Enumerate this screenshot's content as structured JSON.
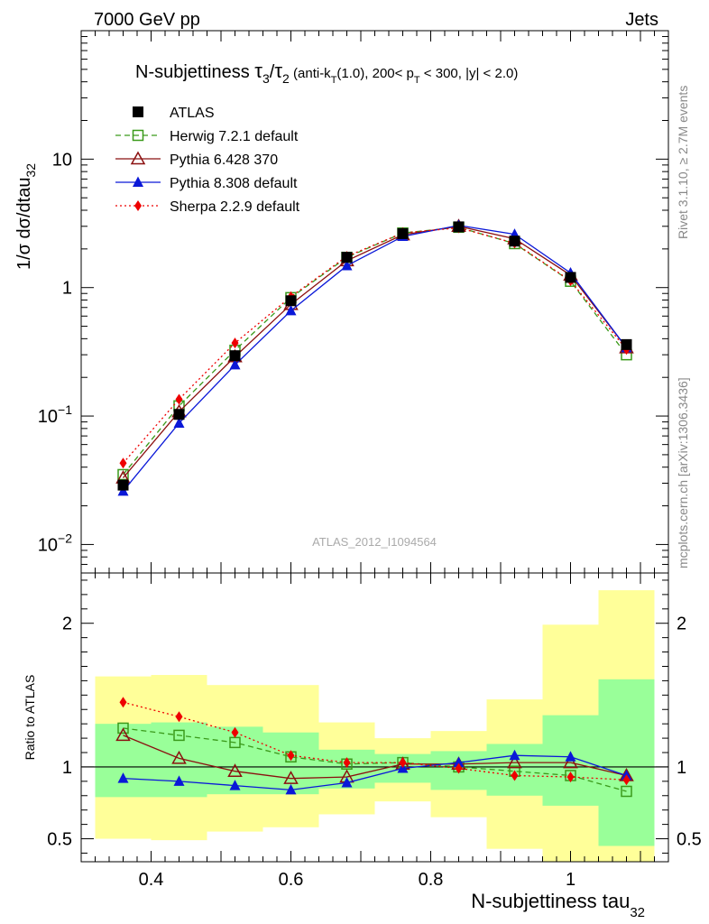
{
  "header": {
    "left": "7000 GeV pp",
    "right": "Jets"
  },
  "title_main": "N-subjettiness ",
  "title_tau3": "τ",
  "title_sub3": "3",
  "title_slash": "/",
  "title_tau2": "τ",
  "title_sub2": "2",
  "title_cuts_a": " (anti-k",
  "title_cuts_T1": "T",
  "title_cuts_b": "(1.0), 200< p",
  "title_cuts_T2": "T",
  "title_cuts_c": " < 300, |y| < 2.0)",
  "analysis_id": "ATLAS_2012_I1094564",
  "side_right_1": "Rivet 3.1.10, ≥ 2.7M events",
  "side_right_2": "mcplots.cern.ch [arXiv:1306.3436]",
  "ylabel_main": "1/σ dσ/dtau",
  "ylabel_main_sub": "32",
  "ylabel_ratio": "Ratio to ATLAS",
  "xlabel": "N-subjettiness tau",
  "xlabel_sub": "32",
  "colors": {
    "atlas": "#000000",
    "herwig": "#3a9a1a",
    "pythia6": "#8b1010",
    "pythia8": "#0a18d8",
    "sherpa": "#ee0000",
    "band_outer": "#ffff99",
    "band_inner": "#99ff99"
  },
  "chart_data": {
    "type": "line",
    "main": {
      "yscale": "log",
      "ylim": [
        0.006,
        100
      ],
      "xlim": [
        0.3,
        1.14
      ],
      "x_ticks": [
        "0.4",
        "0.6",
        "0.8",
        "1"
      ],
      "y_tick_labels": [
        {
          "value": 10,
          "base": "10",
          "exp": ""
        },
        {
          "value": 1,
          "base": "1",
          "exp": ""
        },
        {
          "value": 0.1,
          "base": "10",
          "exp": "−1"
        },
        {
          "value": 0.01,
          "base": "10",
          "exp": "−2"
        }
      ],
      "legend": "top-left"
    },
    "ratio": {
      "ylim": [
        0.34,
        2.35
      ],
      "y_ticks": [
        "0.5",
        "1",
        "2"
      ],
      "y_tick_values": [
        0.5,
        1,
        2
      ]
    },
    "x": [
      0.36,
      0.44,
      0.52,
      0.6,
      0.68,
      0.76,
      0.84,
      0.92,
      1.0,
      1.08
    ],
    "bin_edges": [
      0.32,
      0.4,
      0.48,
      0.56,
      0.64,
      0.72,
      0.8,
      0.88,
      0.96,
      1.04,
      1.12
    ],
    "series": [
      {
        "name": "ATLAS",
        "key": "atlas",
        "marker": "square-filled",
        "line": "none",
        "values": [
          0.029,
          0.103,
          0.295,
          0.79,
          1.72,
          2.63,
          2.97,
          2.3,
          1.2,
          0.36
        ]
      },
      {
        "name": "Herwig 7.2.1 default",
        "key": "herwig",
        "marker": "square-open",
        "line": "dashed",
        "values": [
          0.035,
          0.12,
          0.325,
          0.835,
          1.72,
          2.66,
          2.95,
          2.2,
          1.12,
          0.3
        ],
        "ratio": [
          1.27,
          1.22,
          1.17,
          1.07,
          1.02,
          1.03,
          1.0,
          0.97,
          0.94,
          0.83
        ]
      },
      {
        "name": "Pythia 6.428 370",
        "key": "pythia6",
        "marker": "triangle-open",
        "line": "solid",
        "values": [
          0.033,
          0.108,
          0.29,
          0.74,
          1.62,
          2.58,
          3.0,
          2.4,
          1.25,
          0.34
        ],
        "ratio": [
          1.22,
          1.06,
          0.97,
          0.92,
          0.93,
          1.02,
          1.02,
          1.03,
          1.03,
          0.94
        ]
      },
      {
        "name": "Pythia 8.308 default",
        "key": "pythia8",
        "marker": "triangle-filled",
        "line": "solid",
        "values": [
          0.026,
          0.088,
          0.25,
          0.66,
          1.48,
          2.5,
          3.05,
          2.6,
          1.3,
          0.34
        ],
        "ratio": [
          0.92,
          0.9,
          0.87,
          0.84,
          0.89,
          0.99,
          1.03,
          1.08,
          1.07,
          0.94
        ]
      },
      {
        "name": "Sherpa 2.2.9 default",
        "key": "sherpa",
        "marker": "diamond-filled",
        "line": "dotted",
        "values": [
          0.043,
          0.135,
          0.37,
          0.85,
          1.75,
          2.66,
          2.92,
          2.22,
          1.13,
          0.33
        ],
        "ratio": [
          1.45,
          1.35,
          1.24,
          1.08,
          1.03,
          1.03,
          0.99,
          0.94,
          0.93,
          0.91
        ]
      }
    ],
    "bands": {
      "inner_lo": [
        0.79,
        0.79,
        0.81,
        0.81,
        0.85,
        0.89,
        0.84,
        0.8,
        0.73,
        0.45
      ],
      "inner_hi": [
        1.3,
        1.31,
        1.28,
        1.24,
        1.12,
        1.09,
        1.11,
        1.16,
        1.36,
        1.61
      ],
      "outer_lo": [
        0.5,
        0.49,
        0.55,
        0.58,
        0.67,
        0.76,
        0.65,
        0.43,
        0.34,
        0.34
      ],
      "outer_hi": [
        1.63,
        1.64,
        1.57,
        1.57,
        1.31,
        1.2,
        1.25,
        1.47,
        1.99,
        2.23
      ]
    }
  }
}
